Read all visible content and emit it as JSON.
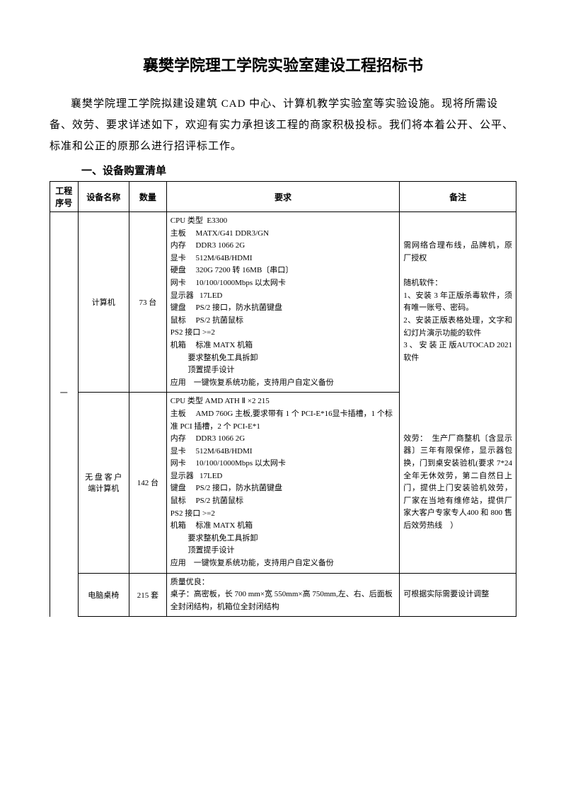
{
  "title": "襄樊学院理工学院实验室建设工程招标书",
  "intro": "襄樊学院理工学院拟建设建筑 CAD 中心、计算机教学实验室等实验设施。现将所需设备、效劳、要求详述如下，欢迎有实力承担该工程的商家积极投标。我们将本着公开、公平、标准和公正的原那么进行招评标工作。",
  "section_heading": "一、设备购置清单",
  "table": {
    "headers": {
      "seq": "工程序号",
      "name": "设备名称",
      "qty": "数量",
      "req": "要求",
      "note": "备注"
    },
    "seq1": "一",
    "row1": {
      "name": "计算机",
      "qty": "73 台",
      "req": "CPU 类型  E3300\n主板     MATX/G41 DDR3/GN\n内存     DDR3 1066 2G\n显卡     512M/64B/HDMI\n硬盘     320G 7200 转 16MB〔串口〕\n网卡     10/100/1000Mbps 以太网卡\n显示器   17LED\n键盘     PS/2 接口，防水抗菌键盘\n鼠标     PS/2 抗菌鼠标\nPS2 接口 >=2\n机箱     标准 MATX 机箱\n         要求整机免工具拆卸\n         顶置提手设计\n应用    一键恢复系统功能，支持用户自定义备份",
      "note_part1": "需网络合理布线，品牌机，原厂授权\n\n随机软件：\n1、安装 3 年正版杀毒软件，须有唯一账号、密码。\n2、安装正版表格处理，文字和幻灯片演示功能的软件\n3 、 安 装 正 版AUTOCAD 2021 软件"
    },
    "row2": {
      "name": "无 盘 客 户端计算机",
      "qty": "142 台",
      "req": "CPU 类型 AMD ATH Ⅱ ×2 215\n主板     AMD 760G 主板,要求带有 1 个 PCI-E*16显卡插槽，1 个标准 PCI 插槽，2 个 PCI-E*1\n内存     DDR3 1066 2G\n显卡     512M/64B/HDMI\n网卡     10/100/1000Mbps 以太网卡\n显示器   17LED\n键盘     PS/2 接口，防水抗菌键盘\n鼠标     PS/2 抗菌鼠标\nPS2 接口 >=2\n机箱     标准 MATX 机箱\n         要求整机免工具拆卸\n         顶置提手设计\n应用    一键恢复系统功能，支持用户自定义备份",
      "note_part2": "效劳：  生产厂商整机〔含显示器〕三年有限保修，显示器包换，门到桌安装验机(要求 7*24全年无休效劳，第二自然日上门，提供上门安装验机效劳，厂家在当地有维修站，提供厂家大客户专家专人400 和 800 售后效劳热线    ）"
    },
    "row3": {
      "name": "电脑桌椅",
      "qty": "215 套",
      "req": "质量优良：\n桌子：高密板，长 700 mm×宽 550mm×高 750mm,左、右、后面板全封闭结构，机箱位全封闭结构",
      "note": "可根据实际需要设计调整"
    }
  }
}
